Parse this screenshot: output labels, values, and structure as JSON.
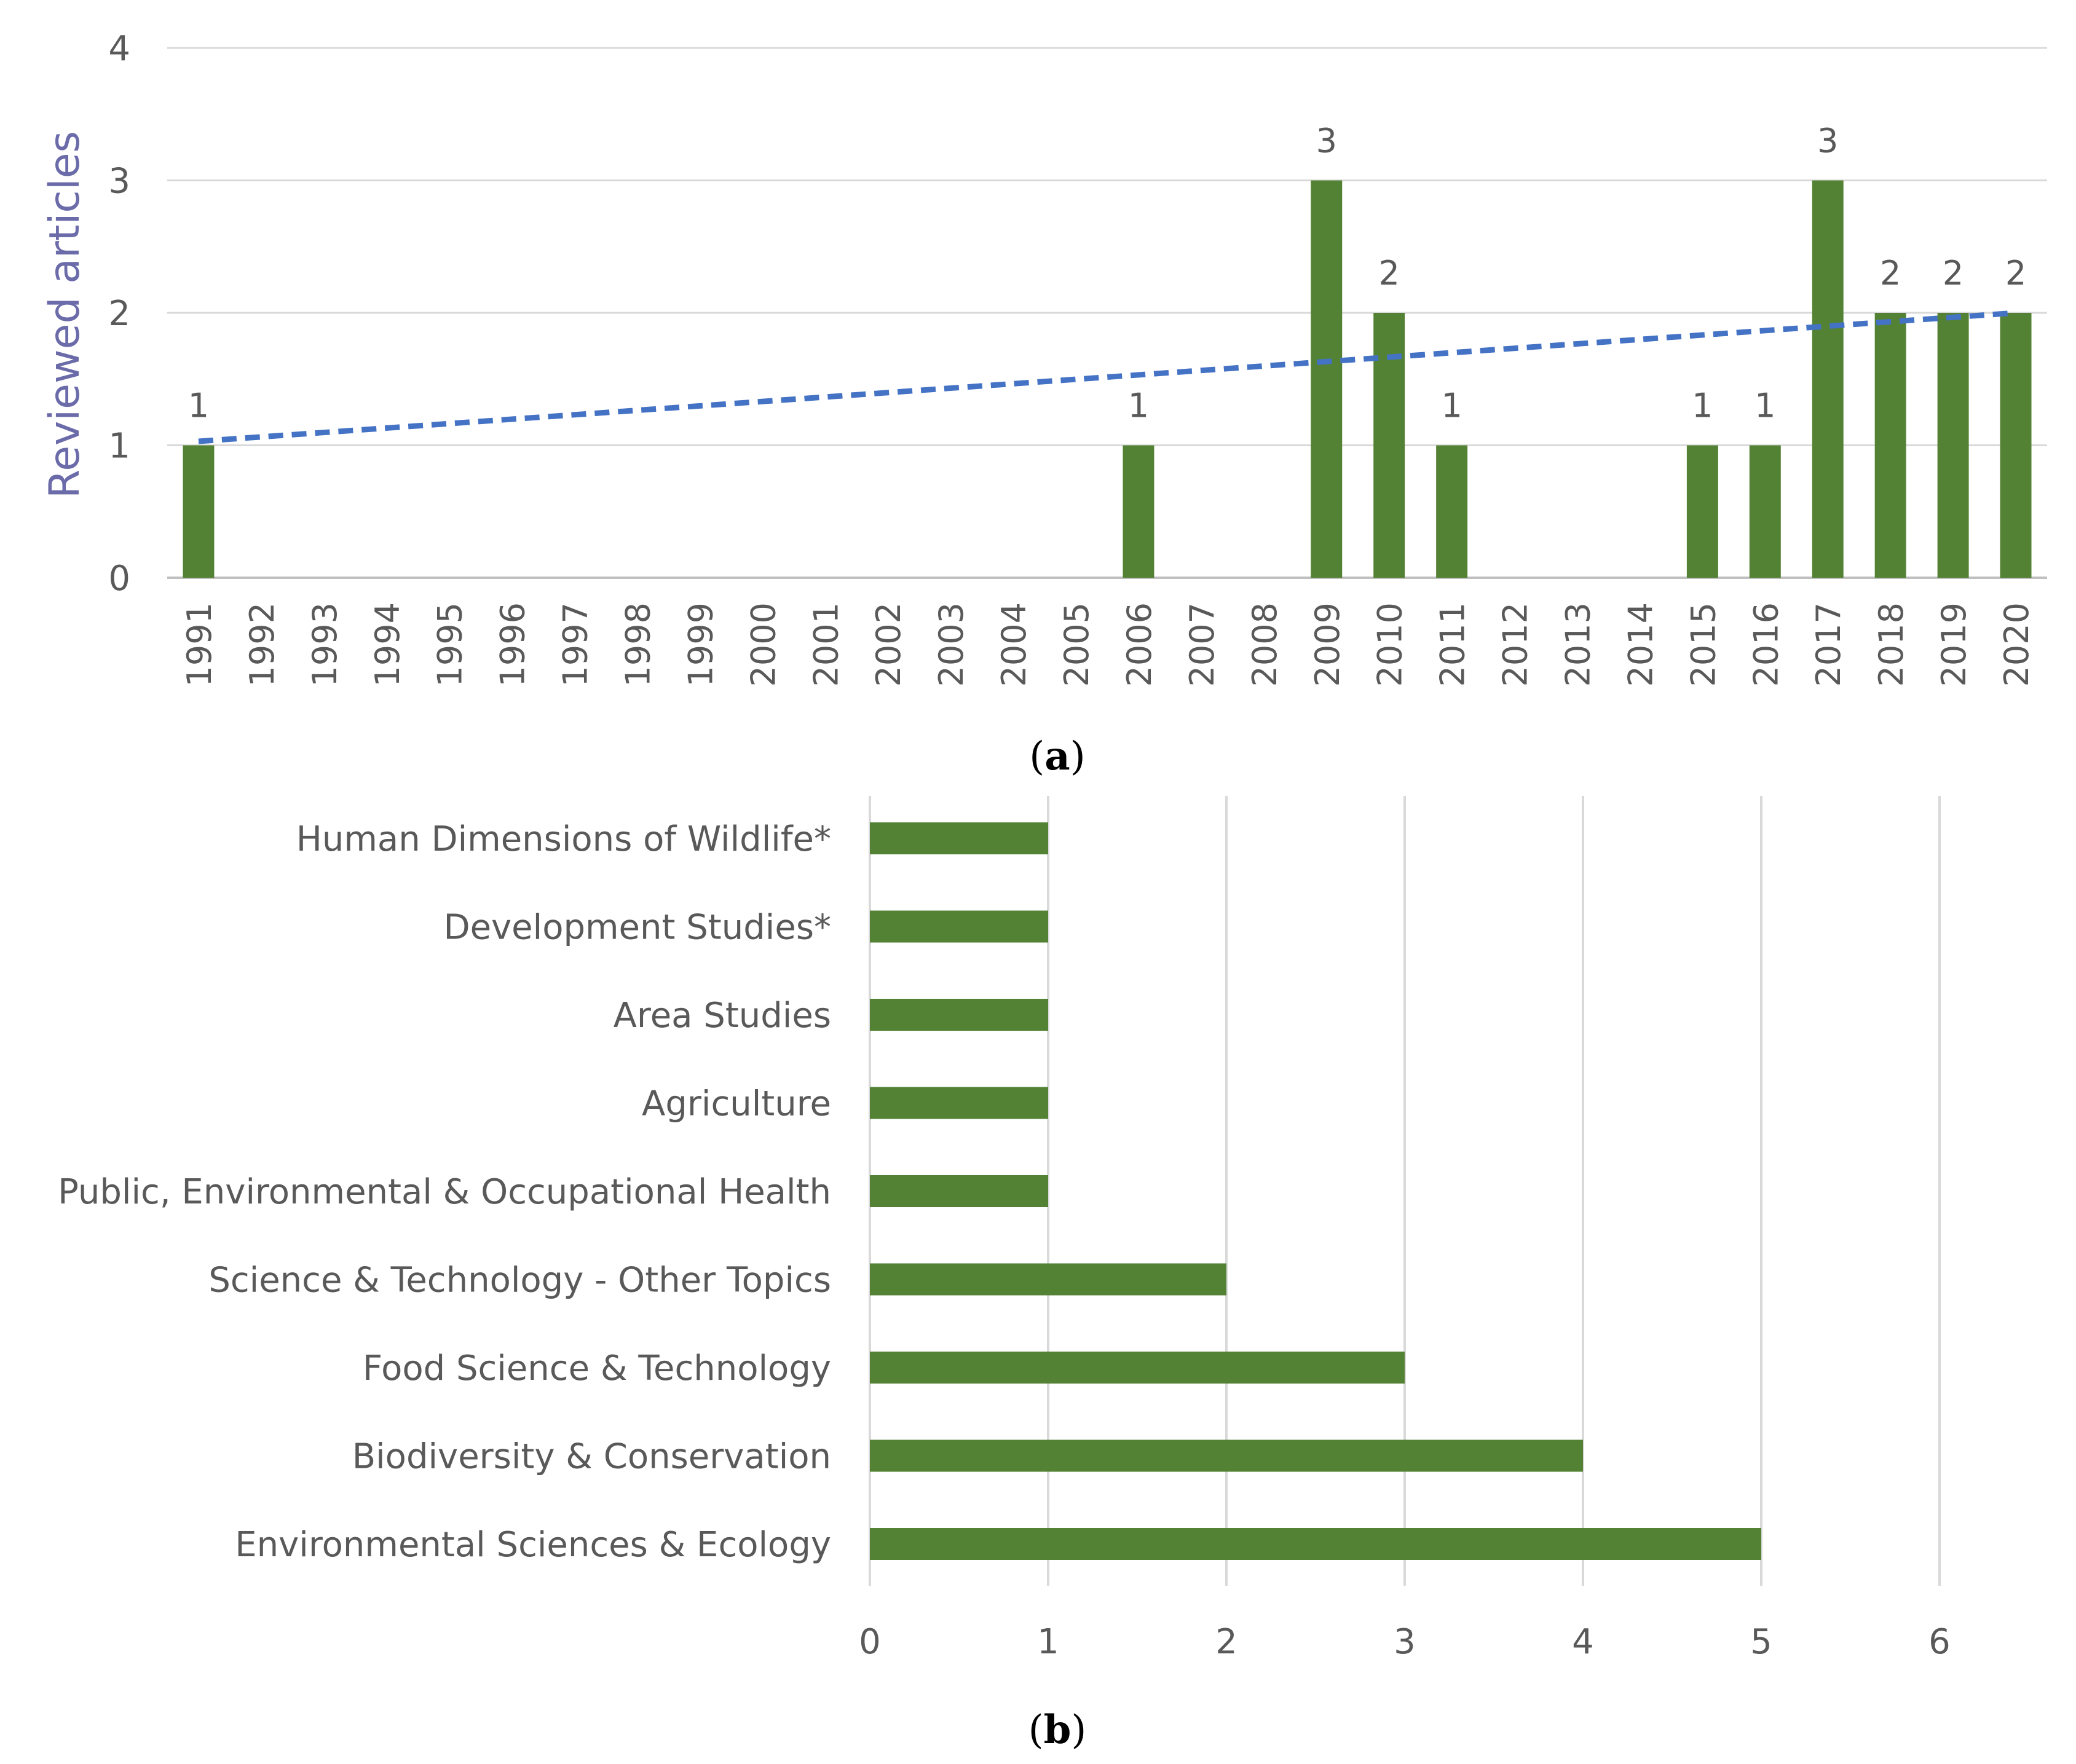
{
  "colors": {
    "bar": "#548235",
    "trend": "#4472C4",
    "ylabel": "#6B6BAA",
    "grid": "#D9D9D9",
    "axis": "#BFBFBF",
    "text": "#595959"
  },
  "chart_data": [
    {
      "type": "bar",
      "title": "",
      "xlabel": "",
      "ylabel": "Reviewed articles",
      "ylim": [
        0,
        4
      ],
      "yticks": [
        "0",
        "1",
        "2",
        "3",
        "4"
      ],
      "grid": true,
      "categories": [
        "1991",
        "1992",
        "1993",
        "1994",
        "1995",
        "1996",
        "1997",
        "1998",
        "1999",
        "2000",
        "2001",
        "2002",
        "2003",
        "2004",
        "2005",
        "2006",
        "2007",
        "2008",
        "2009",
        "2010",
        "2011",
        "2012",
        "2013",
        "2014",
        "2015",
        "2016",
        "2017",
        "2018",
        "2019",
        "2020"
      ],
      "values": [
        1,
        0,
        0,
        0,
        0,
        0,
        0,
        0,
        0,
        0,
        0,
        0,
        0,
        0,
        0,
        1,
        0,
        0,
        3,
        2,
        1,
        0,
        0,
        0,
        1,
        1,
        3,
        2,
        2,
        2
      ],
      "data_labels": [
        "1",
        "",
        "",
        "",
        "",
        "",
        "",
        "",
        "",
        "",
        "",
        "",
        "",
        "",
        "",
        "1",
        "",
        "",
        "3",
        "2",
        "1",
        "",
        "",
        "",
        "1",
        "1",
        "3",
        "2",
        "2",
        "2"
      ],
      "trendline": {
        "type": "linear",
        "start": 1.03,
        "end": 2.0
      },
      "caption_letter": "a"
    },
    {
      "type": "bar",
      "orientation": "horizontal",
      "title": "",
      "xlabel": "",
      "ylabel": "",
      "xlim": [
        0,
        6
      ],
      "xticks": [
        "0",
        "1",
        "2",
        "3",
        "4",
        "5",
        "6"
      ],
      "grid": true,
      "categories": [
        "Human Dimensions of Wildlife*",
        "Development Studies*",
        "Area Studies",
        "Agriculture",
        "Public, Environmental & Occupational Health",
        "Science & Technology - Other Topics",
        "Food Science & Technology",
        "Biodiversity & Conservation",
        "Environmental Sciences & Ecology"
      ],
      "values": [
        1,
        1,
        1,
        1,
        1,
        2,
        3,
        4,
        5
      ],
      "caption_letter": "b"
    }
  ]
}
